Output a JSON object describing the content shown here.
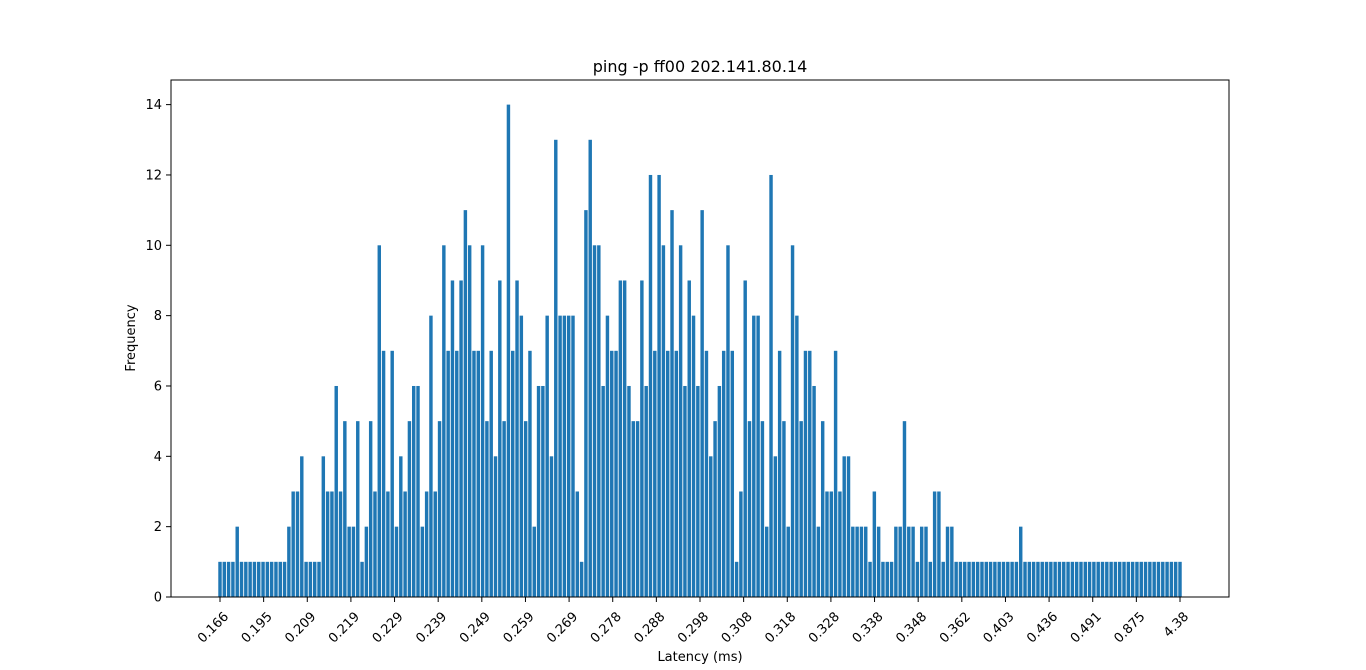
{
  "chart_data": {
    "type": "bar",
    "title": "ping -p ff00 202.141.80.14",
    "xlabel": "Latency (ms)",
    "ylabel": "Frequency",
    "ylim": [
      0,
      14.7
    ],
    "yticks": [
      0,
      2,
      4,
      6,
      8,
      10,
      12,
      14
    ],
    "xtick_labels": [
      "0.166",
      "0.195",
      "0.209",
      "0.219",
      "0.229",
      "0.239",
      "0.249",
      "0.259",
      "0.269",
      "0.278",
      "0.288",
      "0.298",
      "0.308",
      "0.318",
      "0.328",
      "0.338",
      "0.348",
      "0.362",
      "0.403",
      "0.436",
      "0.491",
      "0.875",
      "4.38"
    ],
    "bar_color": "#1f77b4",
    "grid": false,
    "values": [
      1,
      1,
      1,
      1,
      2,
      1,
      1,
      1,
      1,
      1,
      1,
      1,
      1,
      1,
      1,
      1,
      2,
      3,
      3,
      4,
      1,
      1,
      1,
      1,
      4,
      3,
      3,
      6,
      3,
      5,
      2,
      2,
      5,
      1,
      2,
      5,
      3,
      10,
      7,
      3,
      7,
      2,
      4,
      3,
      5,
      6,
      6,
      2,
      3,
      8,
      3,
      5,
      10,
      7,
      9,
      7,
      9,
      11,
      10,
      7,
      7,
      10,
      5,
      7,
      4,
      9,
      5,
      14,
      7,
      9,
      8,
      5,
      7,
      2,
      6,
      6,
      8,
      4,
      13,
      8,
      8,
      8,
      8,
      3,
      1,
      11,
      13,
      10,
      10,
      6,
      8,
      7,
      7,
      9,
      9,
      6,
      5,
      5,
      9,
      6,
      12,
      7,
      12,
      10,
      7,
      11,
      7,
      10,
      6,
      9,
      8,
      6,
      11,
      7,
      4,
      5,
      6,
      7,
      10,
      7,
      1,
      3,
      9,
      5,
      8,
      8,
      5,
      2,
      12,
      4,
      7,
      5,
      2,
      10,
      8,
      5,
      7,
      7,
      6,
      2,
      5,
      3,
      3,
      7,
      3,
      4,
      4,
      2,
      2,
      2,
      2,
      1,
      3,
      2,
      1,
      1,
      1,
      2,
      2,
      5,
      2,
      2,
      1,
      2,
      2,
      1,
      3,
      3,
      1,
      2,
      2,
      1,
      1,
      1,
      1,
      1,
      1,
      1,
      1,
      1,
      1,
      1,
      1,
      1,
      1,
      1,
      2,
      1,
      1,
      1,
      1,
      1,
      1,
      1,
      1,
      1,
      1,
      1,
      1,
      1,
      1,
      1,
      1,
      1,
      1,
      1,
      1,
      1,
      1,
      1,
      1,
      1,
      1,
      1,
      1,
      1,
      1,
      1,
      1,
      1,
      1,
      1,
      1,
      1
    ]
  }
}
